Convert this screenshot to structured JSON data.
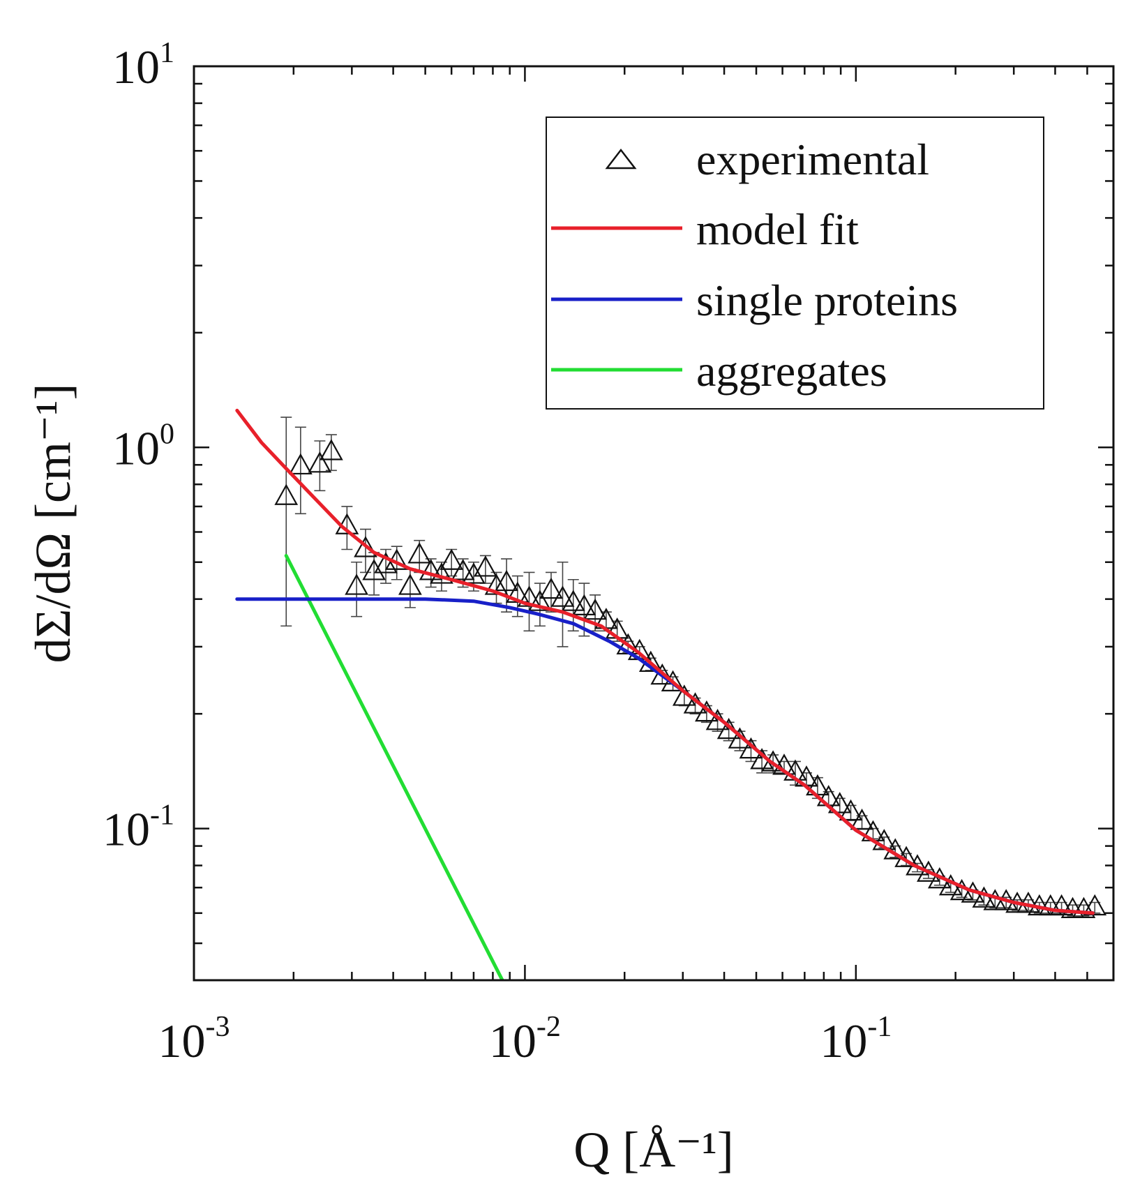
{
  "chart_data": {
    "type": "scatter",
    "title": "",
    "xlabel": "Q [Å⁻¹]",
    "ylabel": "dΣ/dΩ [cm⁻¹]",
    "xscale": "log",
    "yscale": "log",
    "xlim": [
      0.001,
      0.6
    ],
    "ylim": [
      0.04,
      10
    ],
    "x_ticks": [
      {
        "value": 0.001,
        "base": "10",
        "exp": "-3"
      },
      {
        "value": 0.01,
        "base": "10",
        "exp": "-2"
      },
      {
        "value": 0.1,
        "base": "10",
        "exp": "-1"
      }
    ],
    "y_ticks": [
      {
        "value": 0.1,
        "base": "10",
        "exp": "-1"
      },
      {
        "value": 1,
        "base": "10",
        "exp": "0"
      },
      {
        "value": 10,
        "base": "10",
        "exp": "1"
      }
    ],
    "legend_position": "top-right",
    "legend": [
      "experimental",
      "model fit",
      "single proteins",
      "aggregates"
    ],
    "series": [
      {
        "name": "experimental",
        "kind": "scatter",
        "marker": "open-triangle",
        "color": "#111111",
        "x": [
          0.0019,
          0.0021,
          0.0024,
          0.0026,
          0.0029,
          0.0031,
          0.0033,
          0.0035,
          0.0038,
          0.0041,
          0.0045,
          0.0048,
          0.0052,
          0.0056,
          0.006,
          0.0065,
          0.007,
          0.0076,
          0.0082,
          0.0088,
          0.0095,
          0.0103,
          0.0111,
          0.012,
          0.013,
          0.014,
          0.0151,
          0.0163,
          0.0176,
          0.019,
          0.0205,
          0.0222,
          0.024,
          0.026,
          0.028,
          0.0303,
          0.0327,
          0.0354,
          0.0382,
          0.0413,
          0.0446,
          0.0482,
          0.052,
          0.0562,
          0.0607,
          0.0656,
          0.0709,
          0.0766,
          0.0827,
          0.0894,
          0.0965,
          0.1043,
          0.1127,
          0.1217,
          0.1315,
          0.142,
          0.1534,
          0.1657,
          0.179,
          0.1934,
          0.2089,
          0.2256,
          0.2437,
          0.2633,
          0.2844,
          0.3072,
          0.3318,
          0.3584,
          0.3872,
          0.4182,
          0.4518,
          0.488,
          0.527
        ],
        "y": [
          0.74,
          0.89,
          0.9,
          0.97,
          0.62,
          0.43,
          0.54,
          0.47,
          0.49,
          0.5,
          0.43,
          0.52,
          0.47,
          0.46,
          0.5,
          0.47,
          0.46,
          0.48,
          0.43,
          0.44,
          0.41,
          0.4,
          0.39,
          0.42,
          0.4,
          0.39,
          0.38,
          0.37,
          0.35,
          0.33,
          0.3,
          0.29,
          0.27,
          0.25,
          0.24,
          0.22,
          0.21,
          0.2,
          0.19,
          0.18,
          0.17,
          0.16,
          0.15,
          0.148,
          0.145,
          0.14,
          0.135,
          0.128,
          0.12,
          0.115,
          0.11,
          0.104,
          0.097,
          0.092,
          0.087,
          0.083,
          0.079,
          0.076,
          0.073,
          0.07,
          0.068,
          0.067,
          0.065,
          0.064,
          0.064,
          0.063,
          0.063,
          0.062,
          0.062,
          0.062,
          0.061,
          0.061,
          0.062
        ],
        "err_low": [
          0.34,
          0.67,
          0.77,
          0.87,
          0.54,
          0.36,
          0.47,
          0.41,
          0.44,
          0.45,
          0.38,
          0.47,
          0.43,
          0.42,
          0.46,
          0.43,
          0.42,
          0.44,
          0.39,
          0.37,
          0.36,
          0.33,
          0.34,
          0.37,
          0.3,
          0.33,
          0.32,
          0.33,
          0.33,
          0.31,
          0.29,
          0.28,
          0.26,
          0.24,
          0.23,
          0.21,
          0.2,
          0.19,
          0.18,
          0.17,
          0.16,
          0.15,
          0.14,
          0.14,
          0.14,
          0.13,
          0.13,
          0.12,
          0.115,
          0.11,
          0.105,
          0.1,
          0.094,
          0.089,
          0.084,
          0.08,
          0.077,
          0.074,
          0.071,
          0.068,
          0.066,
          0.065,
          0.063,
          0.062,
          0.062,
          0.061,
          0.061,
          0.06,
          0.06,
          0.06,
          0.059,
          0.059,
          0.06
        ],
        "err_high": [
          1.2,
          1.13,
          1.04,
          1.08,
          0.7,
          0.5,
          0.61,
          0.53,
          0.54,
          0.55,
          0.48,
          0.57,
          0.51,
          0.5,
          0.54,
          0.51,
          0.5,
          0.52,
          0.47,
          0.51,
          0.46,
          0.47,
          0.44,
          0.47,
          0.5,
          0.45,
          0.44,
          0.41,
          0.37,
          0.35,
          0.31,
          0.3,
          0.28,
          0.26,
          0.25,
          0.23,
          0.22,
          0.21,
          0.2,
          0.19,
          0.18,
          0.17,
          0.16,
          0.156,
          0.15,
          0.15,
          0.14,
          0.136,
          0.125,
          0.12,
          0.115,
          0.108,
          0.1,
          0.095,
          0.09,
          0.086,
          0.081,
          0.078,
          0.075,
          0.072,
          0.07,
          0.069,
          0.067,
          0.066,
          0.066,
          0.065,
          0.065,
          0.064,
          0.064,
          0.064,
          0.063,
          0.063,
          0.064
        ]
      },
      {
        "name": "model fit",
        "kind": "line",
        "color": "#e8202a",
        "x": [
          0.00135,
          0.0016,
          0.0019,
          0.0023,
          0.0028,
          0.0035,
          0.0045,
          0.006,
          0.008,
          0.01,
          0.013,
          0.017,
          0.022,
          0.03,
          0.04,
          0.055,
          0.07,
          0.1,
          0.15,
          0.22,
          0.3,
          0.4,
          0.52
        ],
        "y": [
          1.25,
          1.03,
          0.88,
          0.74,
          0.62,
          0.53,
          0.48,
          0.45,
          0.42,
          0.39,
          0.37,
          0.34,
          0.29,
          0.23,
          0.19,
          0.15,
          0.13,
          0.099,
          0.08,
          0.069,
          0.064,
          0.061,
          0.06
        ]
      },
      {
        "name": "single proteins",
        "kind": "line",
        "color": "#1820c8",
        "x": [
          0.00135,
          0.002,
          0.003,
          0.005,
          0.007,
          0.009,
          0.011,
          0.014,
          0.018,
          0.022,
          0.03,
          0.04,
          0.055,
          0.07,
          0.1,
          0.15,
          0.22,
          0.3,
          0.4,
          0.52
        ],
        "y": [
          0.4,
          0.4,
          0.4,
          0.4,
          0.395,
          0.38,
          0.365,
          0.345,
          0.31,
          0.28,
          0.23,
          0.19,
          0.15,
          0.13,
          0.099,
          0.08,
          0.069,
          0.064,
          0.061,
          0.06
        ]
      },
      {
        "name": "aggregates",
        "kind": "line",
        "color": "#22dd33",
        "x": [
          0.0019,
          0.00855
        ],
        "y": [
          0.52,
          0.04
        ]
      }
    ]
  }
}
